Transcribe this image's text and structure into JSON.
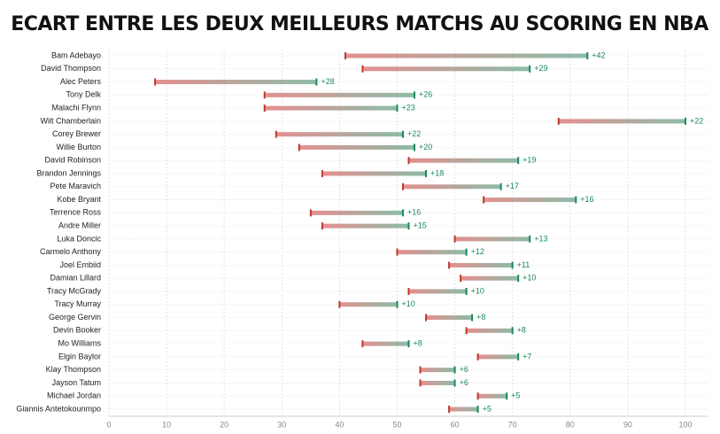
{
  "chart_data": {
    "type": "dumbbell",
    "title": "ECART ENTRE LES DEUX MEILLEURS MATCHS AU SCORING EN NBA",
    "categories": [
      "Bam Adebayo",
      "David Thompson",
      "Alec Peters",
      "Tony Delk",
      "Malachi Flynn",
      "Wilt Chamberlain",
      "Corey Brewer",
      "Willie Burton",
      "David Robinson",
      "Brandon Jennings",
      "Pete Maravich",
      "Kobe Bryant",
      "Terrence Ross",
      "Andre Miller",
      "Luka Doncic",
      "Carmelo Anthony",
      "Joel Embiid",
      "Damian Lillard",
      "Tracy McGrady",
      "Tracy Murray",
      "George Gervin",
      "Devin Booker",
      "Mo Williams",
      "Elgin Baylor",
      "Klay Thompson",
      "Jayson Tatum",
      "Michael Jordan",
      "Giannis Antetokounmpo"
    ],
    "start": {
      "color": "#c0392b",
      "values": [
        41,
        44,
        8,
        27,
        27,
        78,
        29,
        33,
        52,
        37,
        51,
        65,
        35,
        37,
        60,
        50,
        59,
        61,
        52,
        40,
        55,
        62,
        44,
        64,
        54,
        54,
        64,
        59
      ]
    },
    "end": {
      "color": "#1a8a5a",
      "values": [
        83,
        73,
        36,
        53,
        50,
        100,
        51,
        53,
        71,
        55,
        68,
        81,
        51,
        52,
        73,
        62,
        70,
        71,
        62,
        50,
        63,
        70,
        52,
        71,
        60,
        60,
        69,
        64
      ]
    },
    "difference": {
      "values": [
        42,
        29,
        28,
        26,
        23,
        22,
        22,
        20,
        19,
        18,
        17,
        16,
        16,
        15,
        13,
        12,
        11,
        10,
        10,
        10,
        8,
        8,
        8,
        7,
        6,
        6,
        5,
        5
      ],
      "value_labels": [
        "+42",
        "+29",
        "+28",
        "+26",
        "+23",
        "+22",
        "+22",
        "+20",
        "+19",
        "+18",
        "+17",
        "+16",
        "+16",
        "+15",
        "+13",
        "+12",
        "+11",
        "+10",
        "+10",
        "+10",
        "+8",
        "+8",
        "+8",
        "+7",
        "+6",
        "+6",
        "+5",
        "+5"
      ]
    },
    "xlim": [
      0,
      104
    ],
    "xticks": [
      0,
      10,
      20,
      30,
      40,
      50,
      60,
      70,
      80,
      90,
      100
    ],
    "grid": true
  }
}
